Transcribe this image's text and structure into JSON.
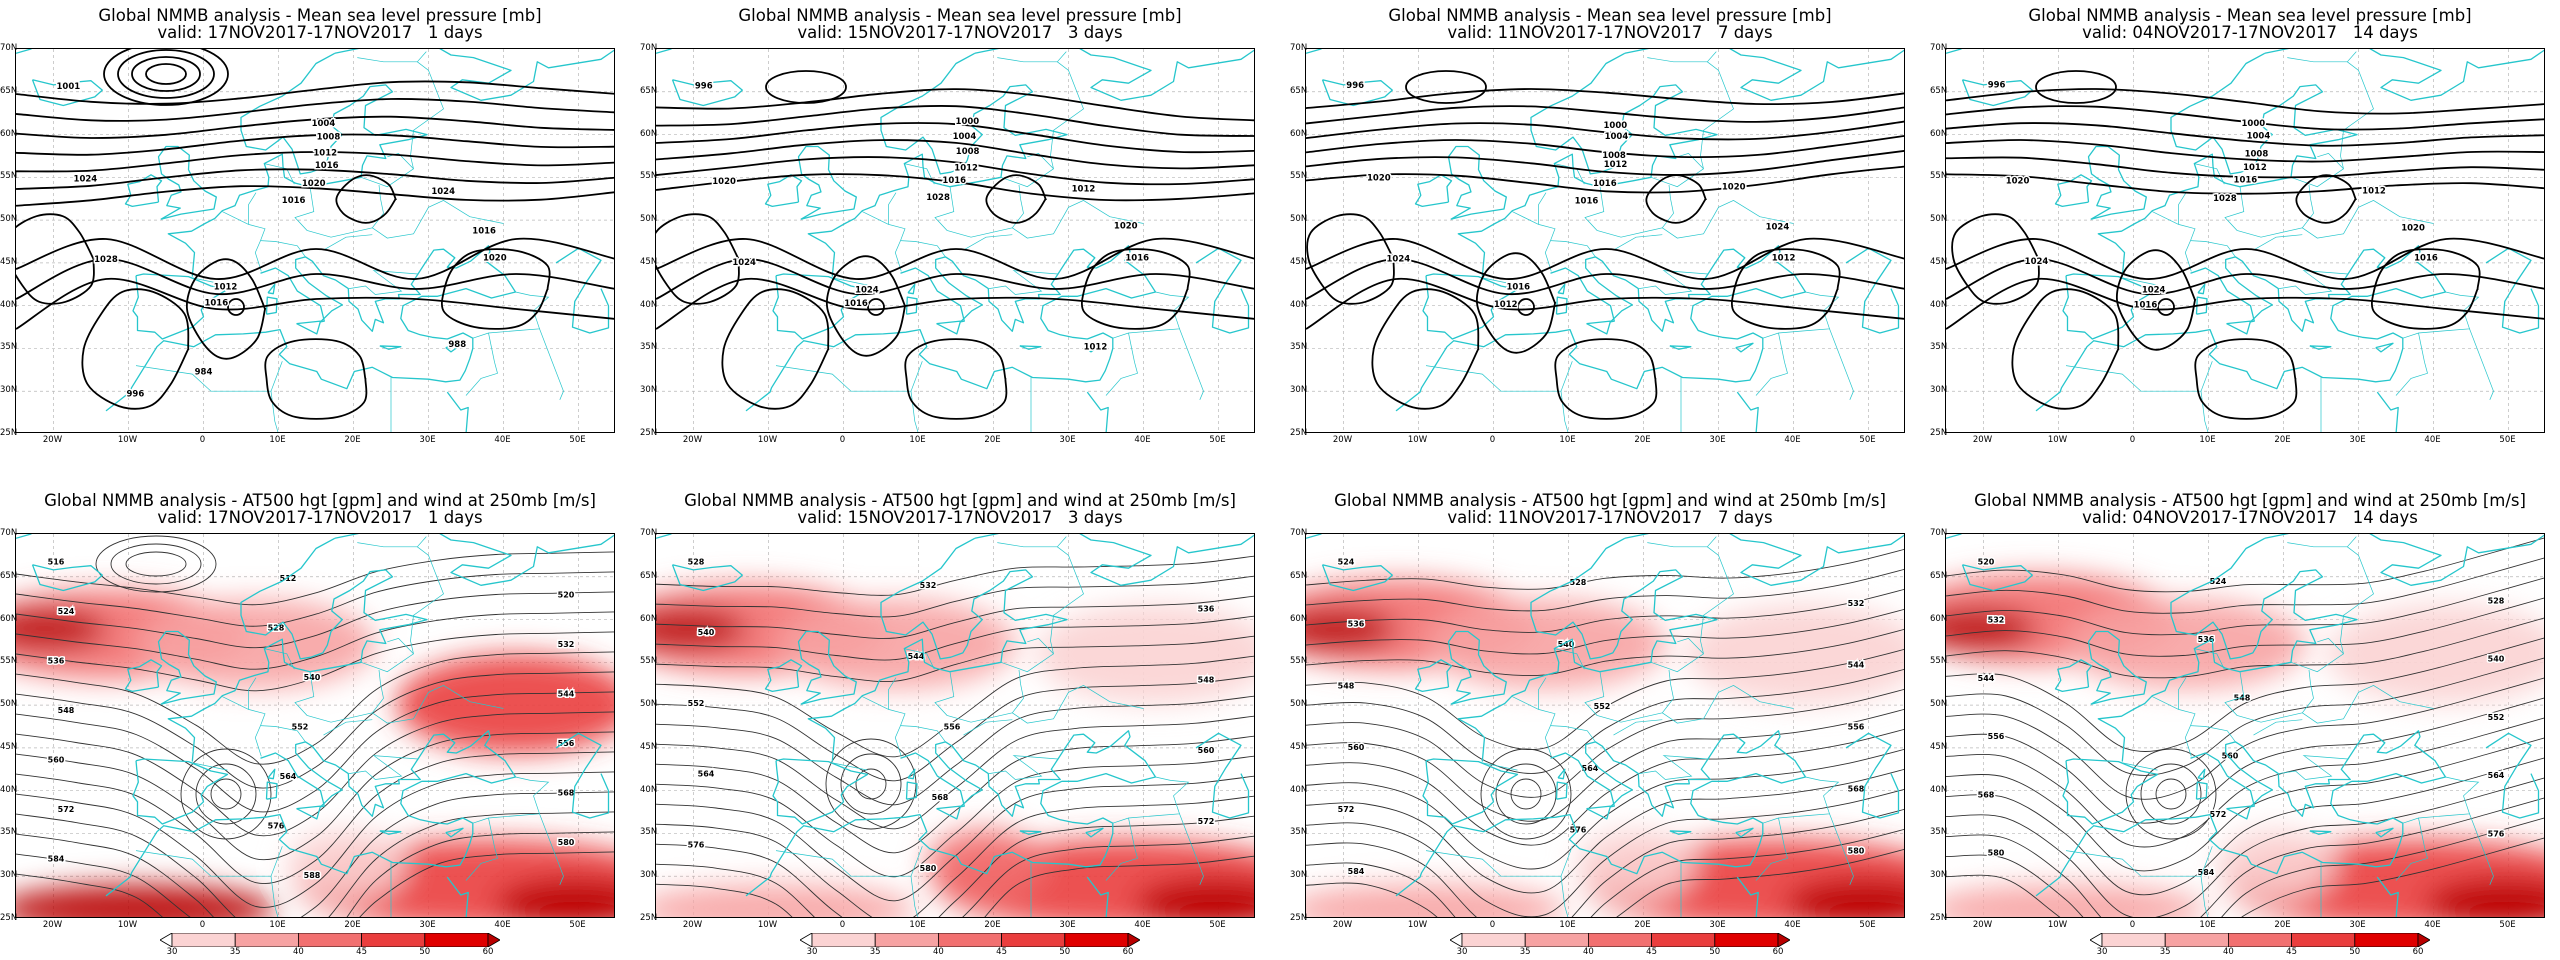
{
  "mslp_title": "Global NMMB analysis - Mean sea level pressure [mb]",
  "z500_title": "Global NMMB analysis - AT500 hgt [gpm] and wind at 250mb [m/s]",
  "periods": [
    {
      "valid": "valid: 17NOV2017-17NOV2017   1 days"
    },
    {
      "valid": "valid: 15NOV2017-17NOV2017   3 days"
    },
    {
      "valid": "valid: 11NOV2017-17NOV2017   7 days"
    },
    {
      "valid": "valid: 04NOV2017-17NOV2017   14 days"
    }
  ],
  "lat_labels": [
    "70N",
    "65N",
    "60N",
    "55N",
    "50N",
    "45N",
    "40N",
    "35N",
    "30N",
    "25N"
  ],
  "lon_labels": [
    "20W",
    "10W",
    "0",
    "10E",
    "20E",
    "30E",
    "40E",
    "50E"
  ],
  "colorbar": {
    "labels": [
      "30",
      "35",
      "40",
      "45",
      "50",
      "60"
    ],
    "colors": [
      "#ffffff",
      "#fbd3d3",
      "#f7a3a3",
      "#f27070",
      "#ea3d3d",
      "#e00000",
      "#b80000"
    ]
  },
  "colors": {
    "coast": "#26c6cc",
    "contour": "#000000",
    "wind": "#e00000"
  },
  "mslp_panels": [
    {
      "labels": [
        "1001",
        "1004",
        "1008",
        "1012",
        "1016",
        "1020",
        "1024",
        "1028",
        "1016",
        "1020",
        "1024",
        "1016",
        "1012",
        "1016",
        "988",
        "984",
        "996"
      ]
    },
    {
      "labels": [
        "996",
        "1000",
        "1004",
        "1008",
        "1012",
        "1016",
        "1020",
        "1024",
        "1028",
        "1016",
        "1012",
        "1020",
        "1024",
        "1016",
        "1012"
      ]
    },
    {
      "labels": [
        "996",
        "1000",
        "1004",
        "1008",
        "1012",
        "1016",
        "1020",
        "1024",
        "1016",
        "1012",
        "1020",
        "1024",
        "1016",
        "1012"
      ]
    },
    {
      "labels": [
        "996",
        "1000",
        "1004",
        "1008",
        "1012",
        "1016",
        "1020",
        "1024",
        "1028",
        "1016",
        "1012",
        "1020",
        "1024",
        "1016"
      ]
    }
  ],
  "z500_panels": [
    {
      "labels": [
        "516",
        "512",
        "520",
        "524",
        "528",
        "532",
        "536",
        "540",
        "544",
        "548",
        "552",
        "556",
        "560",
        "564",
        "568",
        "572",
        "576",
        "580",
        "584",
        "588"
      ]
    },
    {
      "labels": [
        "528",
        "532",
        "536",
        "540",
        "544",
        "548",
        "552",
        "556",
        "560",
        "564",
        "568",
        "572",
        "576",
        "580"
      ]
    },
    {
      "labels": [
        "524",
        "528",
        "532",
        "536",
        "540",
        "544",
        "548",
        "552",
        "556",
        "560",
        "564",
        "568",
        "572",
        "576",
        "580",
        "584"
      ]
    },
    {
      "labels": [
        "520",
        "524",
        "528",
        "532",
        "536",
        "540",
        "544",
        "548",
        "552",
        "556",
        "560",
        "564",
        "568",
        "572",
        "576",
        "580",
        "584"
      ]
    }
  ]
}
